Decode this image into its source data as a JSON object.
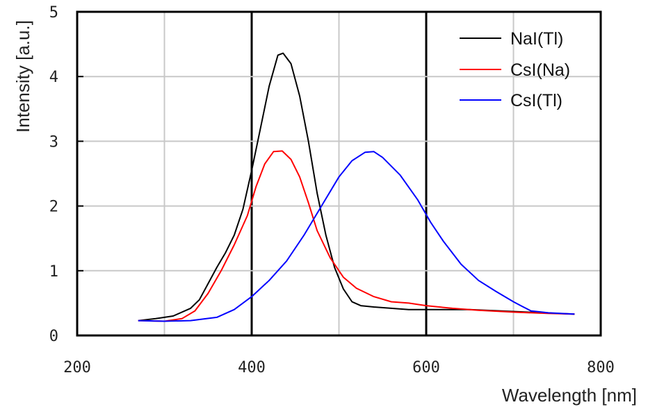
{
  "chart_data": {
    "type": "line",
    "title": "",
    "xlabel": "Wavelength [nm]",
    "ylabel": "Intensity [a.u.]",
    "xlim": [
      200,
      800
    ],
    "ylim": [
      0,
      5
    ],
    "xticks": [
      200,
      400,
      600,
      800
    ],
    "yticks": [
      0,
      1,
      2,
      3,
      4,
      5
    ],
    "grid": true,
    "legend_position": "top-right",
    "series": [
      {
        "name": "NaI(Tl)",
        "color": "#000000",
        "points": [
          [
            270,
            0.23
          ],
          [
            290,
            0.26
          ],
          [
            310,
            0.3
          ],
          [
            330,
            0.42
          ],
          [
            340,
            0.55
          ],
          [
            350,
            0.8
          ],
          [
            360,
            1.05
          ],
          [
            370,
            1.28
          ],
          [
            380,
            1.55
          ],
          [
            390,
            1.95
          ],
          [
            400,
            2.55
          ],
          [
            410,
            3.2
          ],
          [
            420,
            3.85
          ],
          [
            430,
            4.33
          ],
          [
            436,
            4.36
          ],
          [
            445,
            4.2
          ],
          [
            455,
            3.7
          ],
          [
            465,
            3.0
          ],
          [
            475,
            2.2
          ],
          [
            485,
            1.55
          ],
          [
            495,
            1.05
          ],
          [
            505,
            0.72
          ],
          [
            515,
            0.52
          ],
          [
            525,
            0.46
          ],
          [
            540,
            0.44
          ],
          [
            560,
            0.42
          ],
          [
            580,
            0.4
          ],
          [
            600,
            0.4
          ],
          [
            650,
            0.4
          ],
          [
            700,
            0.37
          ],
          [
            750,
            0.34
          ],
          [
            770,
            0.33
          ]
        ]
      },
      {
        "name": "CsI(Na)",
        "color": "#ff0000",
        "points": [
          [
            270,
            0.23
          ],
          [
            300,
            0.22
          ],
          [
            320,
            0.26
          ],
          [
            335,
            0.38
          ],
          [
            350,
            0.65
          ],
          [
            365,
            1.0
          ],
          [
            380,
            1.4
          ],
          [
            395,
            1.85
          ],
          [
            405,
            2.3
          ],
          [
            415,
            2.65
          ],
          [
            425,
            2.84
          ],
          [
            435,
            2.85
          ],
          [
            445,
            2.72
          ],
          [
            455,
            2.45
          ],
          [
            465,
            2.05
          ],
          [
            475,
            1.62
          ],
          [
            490,
            1.2
          ],
          [
            505,
            0.9
          ],
          [
            520,
            0.73
          ],
          [
            540,
            0.6
          ],
          [
            560,
            0.52
          ],
          [
            580,
            0.5
          ],
          [
            600,
            0.46
          ],
          [
            630,
            0.42
          ],
          [
            660,
            0.39
          ],
          [
            700,
            0.36
          ],
          [
            740,
            0.34
          ],
          [
            770,
            0.33
          ]
        ]
      },
      {
        "name": "CsI(Tl)",
        "color": "#0000ff",
        "points": [
          [
            270,
            0.23
          ],
          [
            300,
            0.22
          ],
          [
            330,
            0.23
          ],
          [
            360,
            0.28
          ],
          [
            380,
            0.4
          ],
          [
            400,
            0.6
          ],
          [
            420,
            0.85
          ],
          [
            440,
            1.15
          ],
          [
            460,
            1.55
          ],
          [
            480,
            2.0
          ],
          [
            500,
            2.45
          ],
          [
            515,
            2.7
          ],
          [
            530,
            2.83
          ],
          [
            540,
            2.84
          ],
          [
            550,
            2.75
          ],
          [
            570,
            2.48
          ],
          [
            590,
            2.1
          ],
          [
            605,
            1.75
          ],
          [
            620,
            1.45
          ],
          [
            640,
            1.1
          ],
          [
            660,
            0.85
          ],
          [
            680,
            0.68
          ],
          [
            700,
            0.52
          ],
          [
            710,
            0.45
          ],
          [
            720,
            0.38
          ],
          [
            740,
            0.35
          ],
          [
            770,
            0.33
          ]
        ]
      }
    ]
  }
}
